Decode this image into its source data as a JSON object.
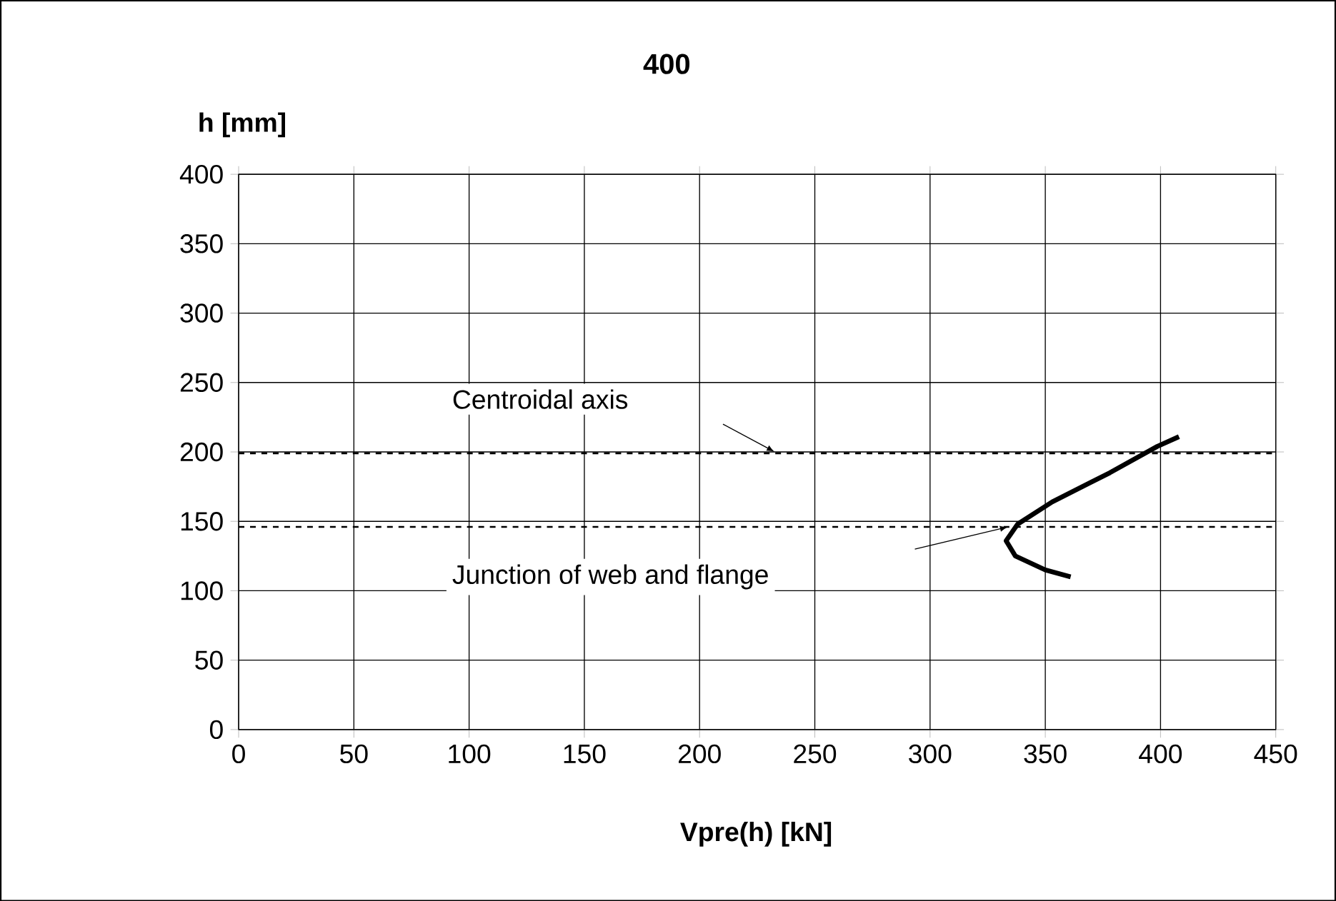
{
  "chart_data": {
    "type": "line",
    "title": "400",
    "xlabel": "Vpre(h)  [kN]",
    "ylabel": "h [mm]",
    "series": [
      {
        "color": "#000000",
        "x": [
          361,
          350,
          337,
          333,
          338,
          353,
          378,
          398.6,
          408
        ],
        "values": [
          110,
          115,
          125,
          136,
          148,
          164,
          185,
          204,
          211
        ]
      }
    ],
    "xlim": [
      0,
      450
    ],
    "ylim": [
      0,
      400
    ],
    "xticks": [
      0,
      50,
      100,
      150,
      200,
      250,
      300,
      350,
      400,
      450
    ],
    "yticks": [
      0,
      50,
      100,
      150,
      200,
      250,
      300,
      350,
      400
    ],
    "grid": true,
    "line_style": "solid",
    "marker": "none",
    "ref_lines": [
      {
        "axis": "y",
        "value": 199,
        "line_style": "dashed",
        "color": "#000000"
      },
      {
        "axis": "y",
        "value": 146,
        "line_style": "dashed",
        "color": "#000000"
      }
    ],
    "annotations": [
      "Centroidal axis",
      "Junction of web and flange"
    ]
  }
}
